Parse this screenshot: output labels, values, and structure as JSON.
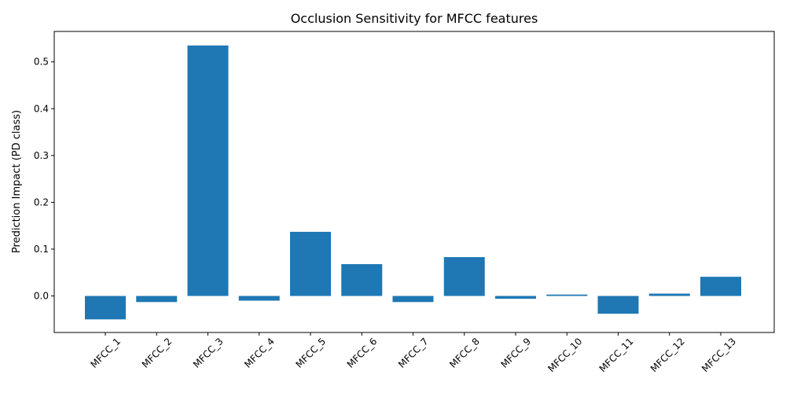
{
  "chart_data": {
    "type": "bar",
    "title": "Occlusion Sensitivity for MFCC features",
    "xlabel": "",
    "ylabel": "Prediction Impact (PD class)",
    "categories": [
      "MFCC_1",
      "MFCC_2",
      "MFCC_3",
      "MFCC_4",
      "MFCC_5",
      "MFCC_6",
      "MFCC_7",
      "MFCC_8",
      "MFCC_9",
      "MFCC_10",
      "MFCC_11",
      "MFCC_12",
      "MFCC_13"
    ],
    "values": [
      -0.05,
      -0.013,
      0.535,
      -0.01,
      0.137,
      0.068,
      -0.013,
      0.083,
      -0.006,
      0.003,
      -0.038,
      0.005,
      0.041
    ],
    "ylim": [
      -0.078,
      0.565
    ],
    "yticks": [
      0.0,
      0.1,
      0.2,
      0.3,
      0.4,
      0.5
    ],
    "ytick_labels": [
      "0.0",
      "0.1",
      "0.2",
      "0.3",
      "0.4",
      "0.5"
    ],
    "bar_color": "#1f77b4",
    "grid": false,
    "legend": "none"
  }
}
